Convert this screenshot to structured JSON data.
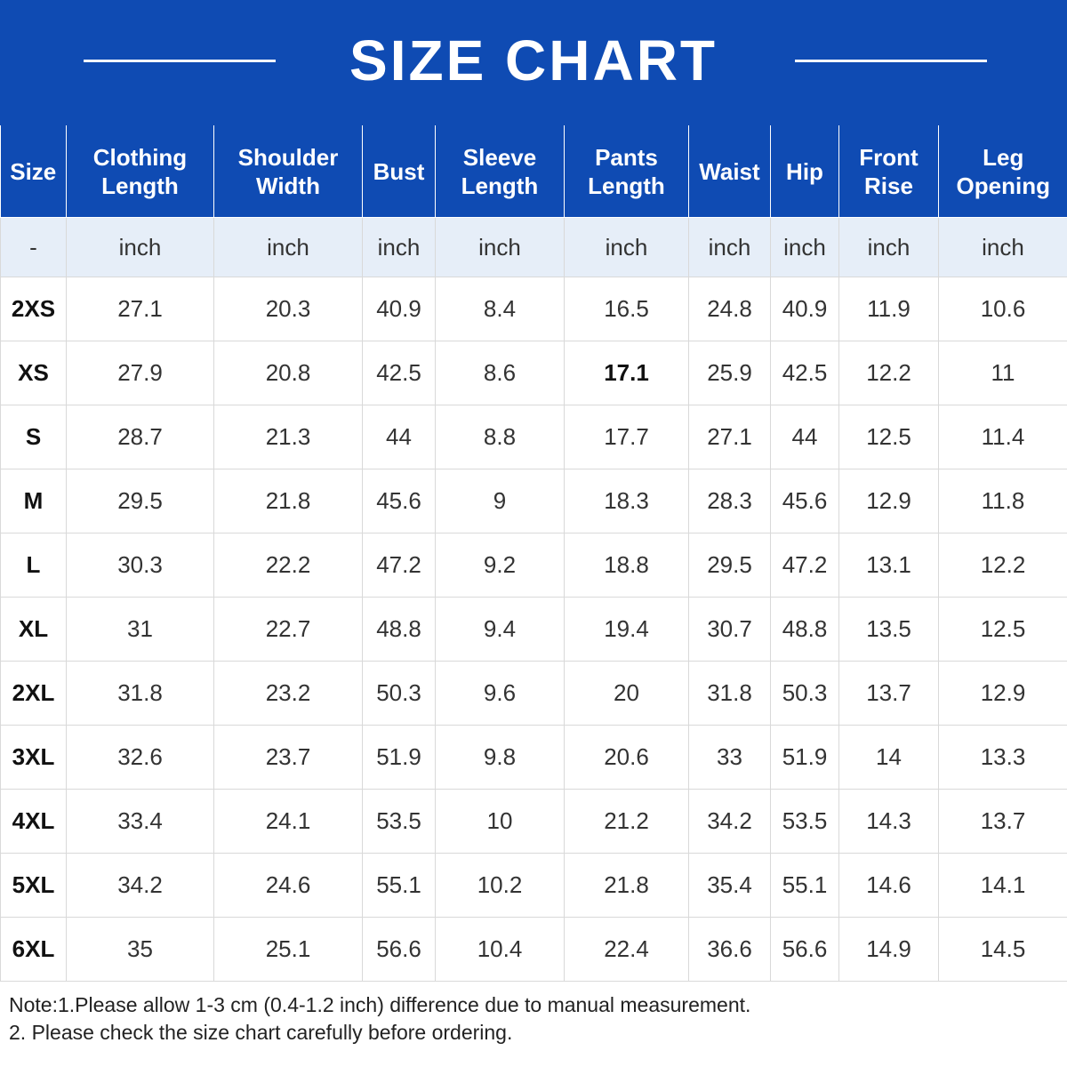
{
  "title": "SIZE CHART",
  "columns": [
    "Size",
    "Clothing Length",
    "Shoulder Width",
    "Bust",
    "Sleeve Length",
    "Pants Length",
    "Waist",
    "Hip",
    "Front Rise",
    "Leg Opening"
  ],
  "header_lines": [
    [
      "Size"
    ],
    [
      "Clothing",
      "Length"
    ],
    [
      "Shoulder",
      "Width"
    ],
    [
      "Bust"
    ],
    [
      "Sleeve",
      "Length"
    ],
    [
      "Pants",
      "Length"
    ],
    [
      "Waist"
    ],
    [
      "Hip"
    ],
    [
      "Front",
      "Rise"
    ],
    [
      "Leg",
      "Opening"
    ]
  ],
  "units": [
    "-",
    "inch",
    "inch",
    "inch",
    "inch",
    "inch",
    "inch",
    "inch",
    "inch",
    "inch"
  ],
  "rows": [
    [
      "2XS",
      "27.1",
      "20.3",
      "40.9",
      "8.4",
      "16.5",
      "24.8",
      "40.9",
      "11.9",
      "10.6"
    ],
    [
      "XS",
      "27.9",
      "20.8",
      "42.5",
      "8.6",
      "17.1",
      "25.9",
      "42.5",
      "12.2",
      "11"
    ],
    [
      "S",
      "28.7",
      "21.3",
      "44",
      "8.8",
      "17.7",
      "27.1",
      "44",
      "12.5",
      "11.4"
    ],
    [
      "M",
      "29.5",
      "21.8",
      "45.6",
      "9",
      "18.3",
      "28.3",
      "45.6",
      "12.9",
      "11.8"
    ],
    [
      "L",
      "30.3",
      "22.2",
      "47.2",
      "9.2",
      "18.8",
      "29.5",
      "47.2",
      "13.1",
      "12.2"
    ],
    [
      "XL",
      "31",
      "22.7",
      "48.8",
      "9.4",
      "19.4",
      "30.7",
      "48.8",
      "13.5",
      "12.5"
    ],
    [
      "2XL",
      "31.8",
      "23.2",
      "50.3",
      "9.6",
      "20",
      "31.8",
      "50.3",
      "13.7",
      "12.9"
    ],
    [
      "3XL",
      "32.6",
      "23.7",
      "51.9",
      "9.8",
      "20.6",
      "33",
      "51.9",
      "14",
      "13.3"
    ],
    [
      "4XL",
      "33.4",
      "24.1",
      "53.5",
      "10",
      "21.2",
      "34.2",
      "53.5",
      "14.3",
      "13.7"
    ],
    [
      "5XL",
      "34.2",
      "24.6",
      "55.1",
      "10.2",
      "21.8",
      "35.4",
      "55.1",
      "14.6",
      "14.1"
    ],
    [
      "6XL",
      "35",
      "25.1",
      "56.6",
      "10.4",
      "22.4",
      "36.6",
      "56.6",
      "14.9",
      "14.5"
    ]
  ],
  "notes": [
    "Note:1.Please allow 1-3 cm (0.4-1.2 inch) difference due to manual measurement.",
    "2. Please check the size chart carefully before ordering."
  ],
  "colors": {
    "brand_blue": "#0f4bb3",
    "unit_row_bg": "#e6eef8",
    "grid": "#d9d9d9"
  }
}
